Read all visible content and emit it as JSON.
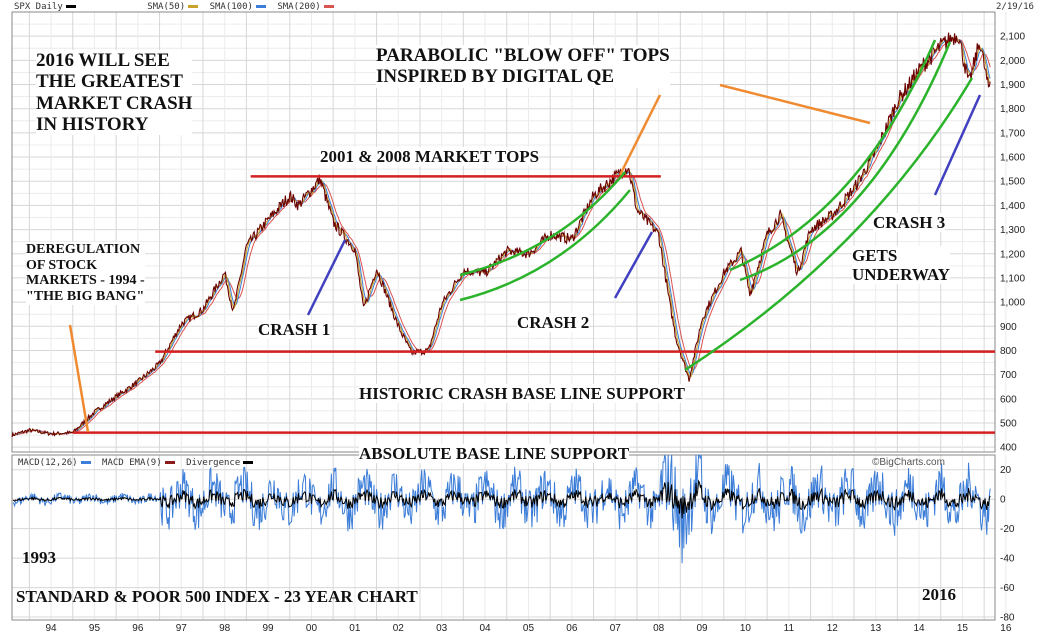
{
  "header": {
    "symbol": "SPX Daily",
    "sma_labels": [
      "SMA(50)",
      "SMA(100)",
      "SMA(200)"
    ],
    "date": "2/19/16",
    "watermark": "©BigCharts.com"
  },
  "macd_legend": [
    "MACD(12,26)",
    "MACD EMA(9)",
    "Divergence"
  ],
  "colors": {
    "price": "#6b0000",
    "sma50": "#c9a227",
    "sma100": "#3b7dd8",
    "sma200": "#d9534f",
    "grid": "#d7d7d7",
    "support": "#d42020",
    "channel": "#2bb32b",
    "crash_arrow": "#4040c0",
    "callout": "#f08a30",
    "macd": "#3b7dd8",
    "divergence": "#000000"
  },
  "annotations": {
    "headline": [
      "2016 WILL SEE",
      "THE GREATEST",
      "MARKET CRASH",
      "IN HISTORY"
    ],
    "parabolic": [
      "PARABOLIC \"BLOW OFF\" TOPS",
      "INSPIRED BY DIGITAL QE"
    ],
    "tops": "2001 & 2008 MARKET TOPS",
    "dereg": [
      "DEREGULATION",
      "OF STOCK",
      "MARKETS - 1994 -",
      "\"THE BIG BANG\""
    ],
    "crash1": "CRASH 1",
    "crash2": "CRASH 2",
    "crash3": "CRASH 3",
    "gets": [
      "GETS",
      "UNDERWAY"
    ],
    "historic": "HISTORIC CRASH BASE LINE SUPPORT",
    "absolute": "ABSOLUTE BASE LINE SUPPORT",
    "year_start": "1993",
    "title": "STANDARD & POOR 500 INDEX - 23 YEAR CHART",
    "year_end": "2016"
  },
  "chart_data": [
    {
      "type": "line",
      "title": "",
      "x_unit": "year",
      "x_ticks": [
        "94",
        "95",
        "96",
        "97",
        "98",
        "99",
        "00",
        "01",
        "02",
        "03",
        "04",
        "05",
        "06",
        "07",
        "08",
        "09",
        "10",
        "11",
        "12",
        "13",
        "14",
        "15",
        "16"
      ],
      "y_ticks": [
        400,
        500,
        600,
        700,
        800,
        900,
        1000,
        1100,
        1200,
        1300,
        1400,
        1500,
        1600,
        1700,
        1800,
        1900,
        2000,
        2100
      ],
      "y_tick_labels": [
        "400",
        "500",
        "600",
        "700",
        "800",
        "900",
        "1,000",
        "1,100",
        "1,200",
        "1,300",
        "1,400",
        "1,500",
        "1,600",
        "1,700",
        "1,800",
        "1,900",
        "2,000",
        "2,100"
      ],
      "ylim": [
        380,
        2200
      ],
      "xlim": [
        1993.6,
        2016.25
      ],
      "series": [
        {
          "name": "SPX Daily",
          "points": [
            [
              1993.6,
              450
            ],
            [
              1994.0,
              470
            ],
            [
              1994.5,
              455
            ],
            [
              1995.0,
              460
            ],
            [
              1995.5,
              545
            ],
            [
              1996.0,
              610
            ],
            [
              1996.5,
              670
            ],
            [
              1997.0,
              745
            ],
            [
              1997.5,
              910
            ],
            [
              1998.0,
              970
            ],
            [
              1998.5,
              1120
            ],
            [
              1998.7,
              960
            ],
            [
              1999.0,
              1230
            ],
            [
              1999.5,
              1340
            ],
            [
              2000.0,
              1440
            ],
            [
              2000.2,
              1400
            ],
            [
              2000.7,
              1510
            ],
            [
              2001.0,
              1330
            ],
            [
              2001.5,
              1220
            ],
            [
              2001.7,
              970
            ],
            [
              2002.0,
              1140
            ],
            [
              2002.5,
              900
            ],
            [
              2002.8,
              790
            ],
            [
              2003.2,
              800
            ],
            [
              2003.5,
              990
            ],
            [
              2004.0,
              1130
            ],
            [
              2004.5,
              1120
            ],
            [
              2005.0,
              1210
            ],
            [
              2005.5,
              1200
            ],
            [
              2006.0,
              1280
            ],
            [
              2006.5,
              1260
            ],
            [
              2007.0,
              1440
            ],
            [
              2007.5,
              1520
            ],
            [
              2007.8,
              1560
            ],
            [
              2008.0,
              1380
            ],
            [
              2008.5,
              1280
            ],
            [
              2008.75,
              1000
            ],
            [
              2008.9,
              850
            ],
            [
              2009.2,
              680
            ],
            [
              2009.5,
              930
            ],
            [
              2010.0,
              1120
            ],
            [
              2010.4,
              1210
            ],
            [
              2010.6,
              1030
            ],
            [
              2011.0,
              1280
            ],
            [
              2011.3,
              1360
            ],
            [
              2011.7,
              1120
            ],
            [
              2012.0,
              1300
            ],
            [
              2012.5,
              1360
            ],
            [
              2013.0,
              1470
            ],
            [
              2013.5,
              1620
            ],
            [
              2014.0,
              1830
            ],
            [
              2014.5,
              1960
            ],
            [
              2015.0,
              2060
            ],
            [
              2015.4,
              2110
            ],
            [
              2015.65,
              1900
            ],
            [
              2015.9,
              2080
            ],
            [
              2016.1,
              1880
            ],
            [
              2016.15,
              1920
            ]
          ]
        }
      ],
      "support_levels": [
        {
          "label": "HISTORIC CRASH BASE LINE SUPPORT",
          "value": 795
        },
        {
          "label": "ABSOLUTE BASE LINE SUPPORT",
          "value": 460
        },
        {
          "label": "2001 & 2008 MARKET TOPS",
          "value": 1520
        }
      ]
    },
    {
      "type": "line",
      "title": "",
      "y_ticks": [
        20,
        0,
        -20,
        -40,
        -60,
        -80
      ],
      "y_tick_labels": [
        "20",
        "0",
        "-20",
        "-40",
        "-60",
        "-80"
      ],
      "ylim": [
        -82,
        30
      ],
      "series": [
        {
          "name": "MACD(12,26)"
        },
        {
          "name": "MACD EMA(9)"
        },
        {
          "name": "Divergence"
        }
      ]
    }
  ]
}
